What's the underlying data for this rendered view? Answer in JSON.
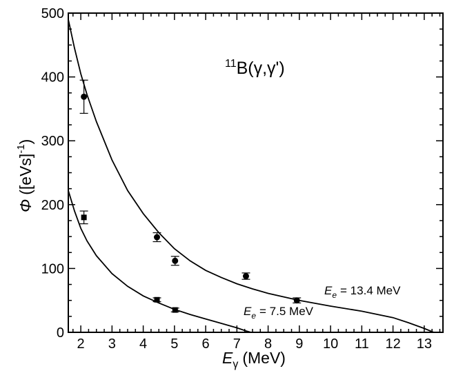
{
  "chart_data": {
    "type": "scatter",
    "title": "B(γ,γ')",
    "title_sup": "11",
    "xlabel": {
      "symbol": "E",
      "sub": "γ",
      "unit": "(MeV)"
    },
    "ylabel": {
      "symbol": "Φ",
      "unit": "([eVs]",
      "sup": "-1",
      "close": ")"
    },
    "xlim": [
      1.6,
      13.6
    ],
    "ylim": [
      0,
      500
    ],
    "xticks": [
      2,
      3,
      4,
      5,
      6,
      7,
      8,
      9,
      10,
      11,
      12,
      13
    ],
    "yticks": [
      0,
      100,
      200,
      300,
      400,
      500
    ],
    "grid": false,
    "series": [
      {
        "label": {
          "symbol": "E",
          "sub": "e",
          "text": "= 13.4 MeV"
        },
        "marker": "circle",
        "points": [
          {
            "x": 2.1,
            "y": 369,
            "err": 26
          },
          {
            "x": 4.44,
            "y": 149,
            "err": 7
          },
          {
            "x": 5.02,
            "y": 112,
            "err": 7
          },
          {
            "x": 7.29,
            "y": 88,
            "err": 5
          },
          {
            "x": 8.92,
            "y": 50,
            "err": 4
          }
        ],
        "fit": [
          [
            1.6,
            490
          ],
          [
            1.8,
            445
          ],
          [
            2.0,
            405
          ],
          [
            2.2,
            372
          ],
          [
            2.5,
            330
          ],
          [
            3.0,
            270
          ],
          [
            3.5,
            222
          ],
          [
            4.0,
            186
          ],
          [
            4.5,
            156
          ],
          [
            5.0,
            131
          ],
          [
            5.5,
            112
          ],
          [
            6.0,
            97
          ],
          [
            6.5,
            86
          ],
          [
            7.0,
            76
          ],
          [
            7.5,
            68
          ],
          [
            8.0,
            61
          ],
          [
            9.0,
            50
          ],
          [
            10.0,
            41
          ],
          [
            11.0,
            33
          ],
          [
            12.0,
            23
          ],
          [
            12.5,
            15
          ],
          [
            13.0,
            6
          ],
          [
            13.3,
            0
          ]
        ]
      },
      {
        "label": {
          "symbol": "E",
          "sub": "e",
          "text": "= 7.5 MeV"
        },
        "marker": "square",
        "points": [
          {
            "x": 2.1,
            "y": 180,
            "err": 10
          },
          {
            "x": 4.44,
            "y": 51,
            "err": 3
          },
          {
            "x": 5.02,
            "y": 35,
            "err": 3
          }
        ],
        "fit": [
          [
            1.6,
            222
          ],
          [
            1.8,
            190
          ],
          [
            2.0,
            163
          ],
          [
            2.2,
            143
          ],
          [
            2.5,
            120
          ],
          [
            3.0,
            92
          ],
          [
            3.5,
            72
          ],
          [
            4.0,
            57
          ],
          [
            4.5,
            46
          ],
          [
            5.0,
            36
          ],
          [
            5.5,
            28
          ],
          [
            6.0,
            21
          ],
          [
            6.5,
            14
          ],
          [
            7.0,
            7
          ],
          [
            7.3,
            2
          ],
          [
            7.45,
            0
          ]
        ]
      }
    ]
  }
}
